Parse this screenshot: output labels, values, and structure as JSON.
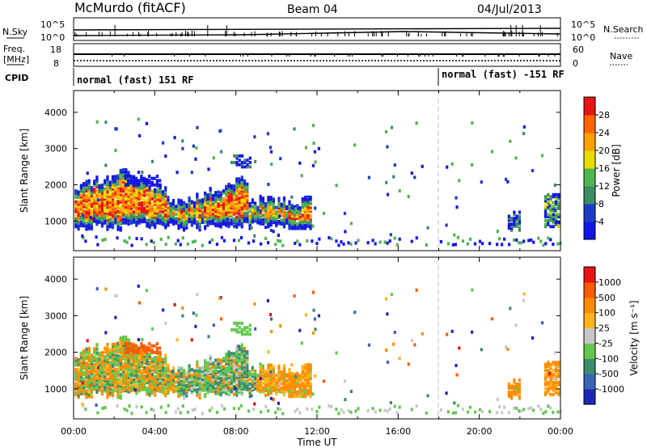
{
  "header": {
    "station": "McMurdo (fitACF)",
    "beam": "Beam 04",
    "date": "04/Jul/2013"
  },
  "strips": {
    "nsky_label": "N.Sky",
    "nsearch_label": "N.Search",
    "freq_label_1": "Freq.",
    "freq_label_2": "[MHz]",
    "nave_label": "Nave",
    "cpid_label": "CPID",
    "left_ticks_top": [
      "10^5",
      "10^0"
    ],
    "right_ticks_top": [
      "10^5",
      "10^0"
    ],
    "left_ticks_freq": [
      "18",
      "8"
    ],
    "right_ticks_nave": [
      "60",
      "0"
    ],
    "cpid_left": "normal (fast) 151 RF",
    "cpid_right": "normal (fast) -151 RF"
  },
  "colors": {
    "power_scale": [
      "#1414e6",
      "#1e3cc8",
      "#3c8c64",
      "#50b450",
      "#e6dc00",
      "#ffa000",
      "#ff6400",
      "#e61414"
    ],
    "velocity_scale": [
      "#1e28b4",
      "#3c64b4",
      "#3c8c6e",
      "#64c850",
      "#c8c8c8",
      "#ffb41e",
      "#ff8c00",
      "#ff5a00",
      "#e61414"
    ]
  },
  "chart_data": [
    {
      "type": "heatmap",
      "panel": "power",
      "xlabel": "",
      "ylabel": "Slant Range [km]",
      "x_range_hours": [
        0,
        24
      ],
      "ylim": [
        180,
        4600
      ],
      "yticks": [
        1000,
        2000,
        3000,
        4000
      ],
      "colorbar_label": "Power [dB]",
      "colorbar_ticks": [
        "4",
        "8",
        "12",
        "16",
        "20",
        "24",
        "28"
      ],
      "colorbar_range": [
        0,
        32
      ]
    },
    {
      "type": "heatmap",
      "panel": "velocity",
      "xlabel": "Time UT",
      "ylabel": "Slant Range [km]",
      "x_range_hours": [
        0,
        24
      ],
      "ylim": [
        180,
        4600
      ],
      "yticks": [
        1000,
        2000,
        3000,
        4000
      ],
      "xticks": [
        "00:00",
        "04:00",
        "08:00",
        "12:00",
        "16:00",
        "20:00",
        "00:00"
      ],
      "colorbar_label": "Velocity [m s⁻¹]",
      "colorbar_ticks": [
        "1000",
        "500",
        "100",
        "25",
        "-25",
        "-100",
        "-500",
        "-1000"
      ]
    }
  ]
}
